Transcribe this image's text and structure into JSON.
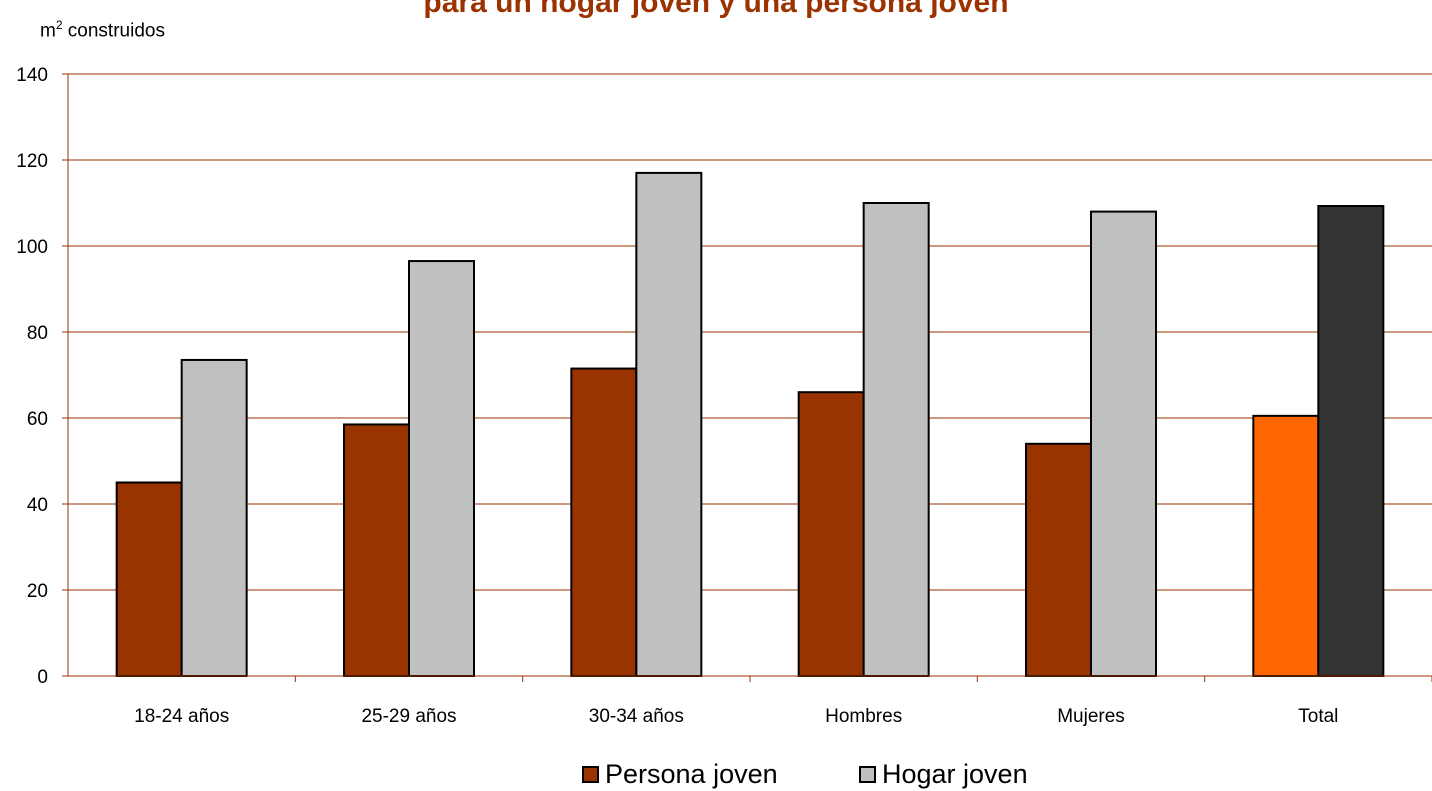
{
  "chart_data": {
    "type": "bar",
    "title": "para un hogar joven y una persona joven",
    "ylabel_prefix": "m",
    "ylabel_sup": "2",
    "ylabel_suffix": " construidos",
    "xlabel": "",
    "ylim": [
      0,
      140
    ],
    "yticks": [
      0,
      20,
      40,
      60,
      80,
      100,
      120,
      140
    ],
    "grid": true,
    "legend_position": "bottom-center",
    "categories": [
      "18-24 años",
      "25-29 años",
      "30-34 años",
      "Hombres",
      "Mujeres",
      "Total"
    ],
    "series": [
      {
        "name": "Persona joven",
        "color": "#993300",
        "highlight_color": "#ff6600",
        "values": [
          45,
          58.5,
          71.5,
          66,
          54,
          60.5
        ]
      },
      {
        "name": "Hogar joven",
        "color": "#c0c0c0",
        "highlight_color": "#333333",
        "values": [
          73.5,
          96.5,
          117,
          110,
          108,
          109.3
        ]
      }
    ],
    "highlighted_category": "Total",
    "gridline_color": "#993300"
  }
}
